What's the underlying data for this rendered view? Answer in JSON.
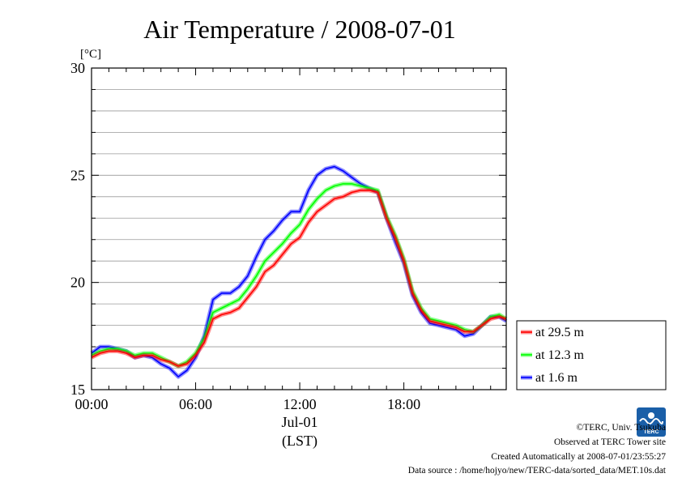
{
  "chart_data": {
    "type": "line",
    "title": "Air Temperature / 2008-07-01",
    "ylabel": "[°C]",
    "ylim": [
      15,
      30
    ],
    "yticks": [
      15,
      20,
      25,
      30
    ],
    "xlim": [
      0,
      23.9
    ],
    "xticks": [
      {
        "value": 0,
        "label": "00:00"
      },
      {
        "value": 6,
        "label": "06:00"
      },
      {
        "value": 12,
        "label": "12:00"
      },
      {
        "value": 18,
        "label": "18:00"
      }
    ],
    "xdate_label": "Jul-01",
    "xunit_label": "(LST)",
    "grid": true,
    "legend_position": "right-bottom",
    "x": [
      0,
      0.5,
      1,
      1.5,
      2,
      2.5,
      3,
      3.5,
      4,
      4.5,
      5,
      5.5,
      6,
      6.5,
      7,
      7.5,
      8,
      8.5,
      9,
      9.5,
      10,
      10.5,
      11,
      11.5,
      12,
      12.5,
      13,
      13.5,
      14,
      14.5,
      15,
      15.5,
      16,
      16.5,
      17,
      17.5,
      18,
      18.5,
      19,
      19.5,
      20,
      20.5,
      21,
      21.5,
      22,
      22.5,
      23,
      23.5,
      23.9
    ],
    "series": [
      {
        "name": "at 29.5 m",
        "color": "#ff0000",
        "values": [
          16.5,
          16.7,
          16.8,
          16.8,
          16.7,
          16.5,
          16.6,
          16.6,
          16.4,
          16.3,
          16.1,
          16.2,
          16.6,
          17.2,
          18.3,
          18.5,
          18.6,
          18.8,
          19.3,
          19.8,
          20.5,
          20.8,
          21.3,
          21.8,
          22.1,
          22.8,
          23.3,
          23.6,
          23.9,
          24.0,
          24.2,
          24.3,
          24.3,
          24.2,
          23.0,
          22.1,
          21.0,
          19.5,
          18.7,
          18.2,
          18.1,
          18.0,
          17.9,
          17.7,
          17.7,
          18.0,
          18.3,
          18.4,
          18.3
        ]
      },
      {
        "name": "at 12.3 m",
        "color": "#00ff00",
        "values": [
          16.6,
          16.8,
          16.9,
          16.9,
          16.8,
          16.6,
          16.7,
          16.7,
          16.5,
          16.3,
          16.1,
          16.3,
          16.7,
          17.4,
          18.6,
          18.8,
          19.0,
          19.2,
          19.7,
          20.3,
          21.0,
          21.4,
          21.8,
          22.3,
          22.7,
          23.4,
          23.9,
          24.3,
          24.5,
          24.6,
          24.6,
          24.5,
          24.4,
          24.3,
          23.1,
          22.2,
          21.1,
          19.6,
          18.8,
          18.3,
          18.2,
          18.1,
          18.0,
          17.8,
          17.7,
          18.0,
          18.4,
          18.5,
          18.3
        ]
      },
      {
        "name": "at 1.6 m",
        "color": "#0000ff",
        "values": [
          16.7,
          17.0,
          17.0,
          16.9,
          16.8,
          16.5,
          16.6,
          16.5,
          16.2,
          16.0,
          15.6,
          15.9,
          16.5,
          17.5,
          19.2,
          19.5,
          19.5,
          19.8,
          20.3,
          21.2,
          22.0,
          22.4,
          22.9,
          23.3,
          23.3,
          24.3,
          25.0,
          25.3,
          25.4,
          25.2,
          24.9,
          24.6,
          24.4,
          24.2,
          23.0,
          21.9,
          20.9,
          19.4,
          18.6,
          18.1,
          18.0,
          17.9,
          17.8,
          17.5,
          17.6,
          18.0,
          18.4,
          18.4,
          18.2
        ]
      }
    ]
  },
  "credits": {
    "copyright": "©TERC, Univ. Tsukuba",
    "site": "Observed at TERC Tower site",
    "created": "Created Automatically at 2008-07-01/23:55:27",
    "source": "Data source : /home/hojyo/new/TERC-data/sorted_data/MET.10s.dat"
  },
  "logo": {
    "text": "TERC",
    "color": "#1a5fa8"
  }
}
